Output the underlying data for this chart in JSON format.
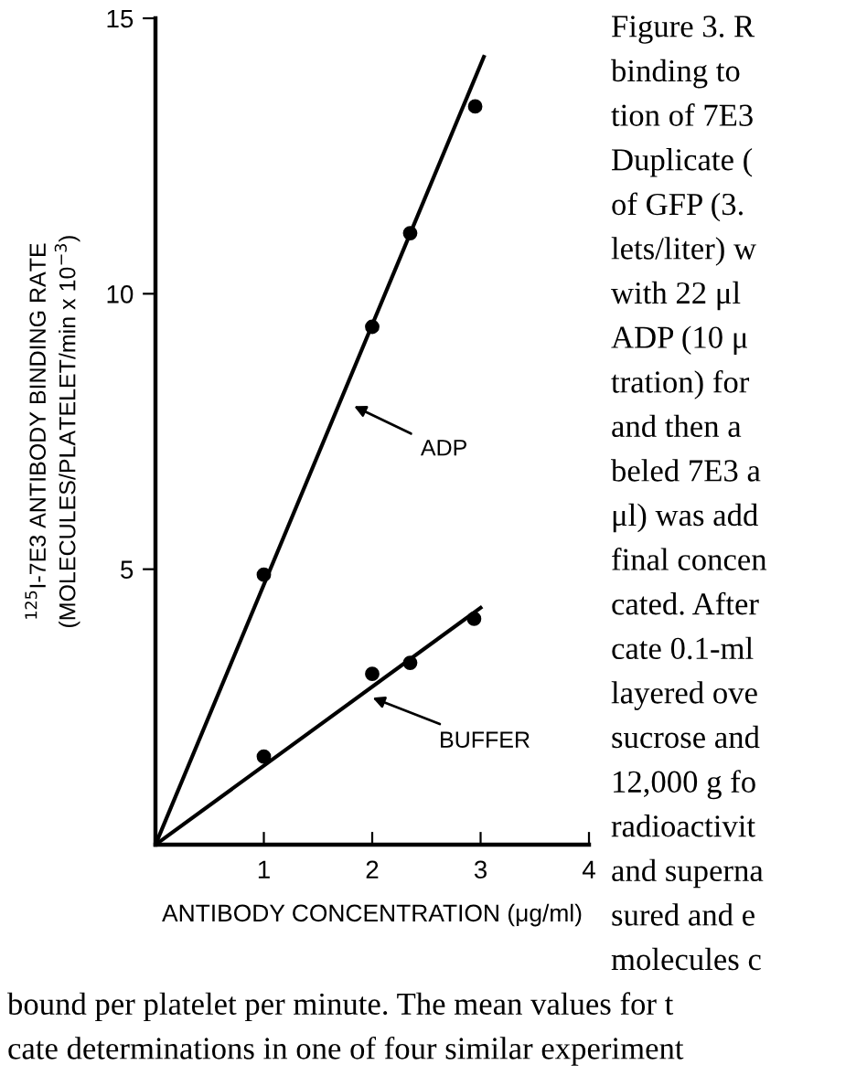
{
  "chart_data": {
    "type": "scatter",
    "xlabel": "ANTIBODY CONCENTRATION (μg/ml)",
    "ylabel": "$^{125}$I-7E3 ANTIBODY BINDING RATE\n(MOLECULES/PLATELET/min x 10$^{−3}$)",
    "xlim": [
      0,
      4
    ],
    "ylim": [
      0,
      15
    ],
    "xticks": [
      1,
      2,
      3,
      4
    ],
    "yticks": [
      5,
      10,
      15
    ],
    "grid": false,
    "legend": false,
    "series": [
      {
        "marker": "circle",
        "color": "#000000",
        "x": [
          1,
          2,
          2.35,
          2.95
        ],
        "values": [
          4.9,
          9.4,
          11.1,
          13.4
        ]
      },
      {
        "type": "line",
        "marker": "none",
        "color": "#000000",
        "x": [
          0,
          3.03
        ],
        "values": [
          0,
          14.3
        ]
      },
      {
        "marker": "circle",
        "color": "#000000",
        "x": [
          1,
          2,
          2.35,
          2.94
        ],
        "values": [
          1.6,
          3.1,
          3.3,
          4.1
        ]
      },
      {
        "type": "line",
        "marker": "none",
        "color": "#000000",
        "x": [
          0,
          3.0
        ],
        "values": [
          0,
          4.3
        ]
      }
    ],
    "annotations": [
      {
        "text": "ADP",
        "x": 1.79,
        "y": 8.0
      },
      {
        "text": "BUFFER",
        "x": 1.96,
        "y": 2.7
      },
      "Figure 3. R",
      "binding to",
      "tion of 7E3",
      "Duplicate (",
      "of GFP (3.",
      "lets/liter) w",
      "with 22 μl",
      "ADP (10 μ",
      "tration) for",
      "and then a",
      "beled 7E3 a",
      "μl) was add",
      "final concen",
      "cated. After",
      "cate 0.1-ml",
      "layered ove",
      "sucrose and",
      "12,000 g fo",
      "radioactivit",
      "and superna",
      "sured and e",
      "molecules c",
      "bound per platelet per minute. The mean values for t",
      "cate determinations in one of four similar experiment"
    ]
  }
}
